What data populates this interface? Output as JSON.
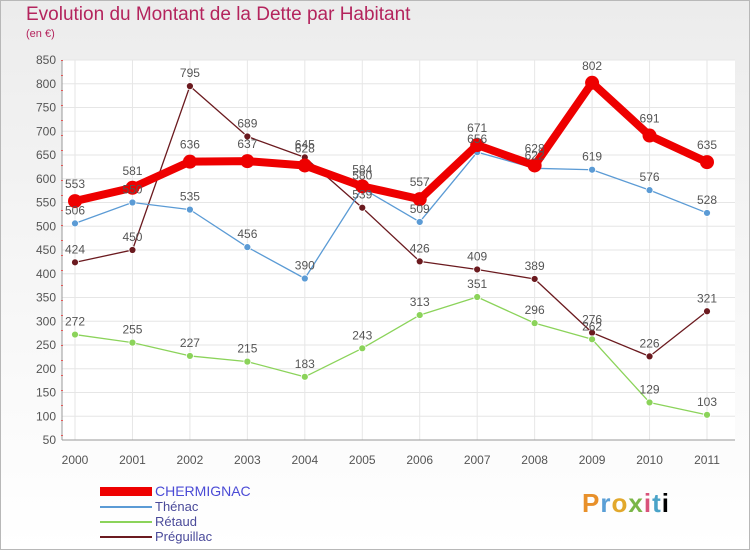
{
  "title": "Evolution du Montant de la Dette par Habitant",
  "unit": "(en €)",
  "brand": [
    "P",
    "r",
    "o",
    "x",
    "i",
    "t",
    "i"
  ],
  "chart_data": {
    "type": "line",
    "x": [
      "2000",
      "2001",
      "2002",
      "2003",
      "2004",
      "2005",
      "2006",
      "2007",
      "2008",
      "2009",
      "2010",
      "2011"
    ],
    "ylim": [
      50,
      850
    ],
    "yticks": [
      50,
      100,
      150,
      200,
      250,
      300,
      350,
      400,
      450,
      500,
      550,
      600,
      650,
      700,
      750,
      800,
      850
    ],
    "grid": true,
    "legend_position": "bottom-left",
    "series": [
      {
        "name": "Préguillac",
        "color": "#6b1a1f",
        "values": [
          424,
          450,
          795,
          689,
          645,
          539,
          426,
          409,
          389,
          276,
          226,
          321
        ]
      },
      {
        "name": "Rétaud",
        "color": "#8bd35a",
        "values": [
          272,
          255,
          227,
          215,
          183,
          243,
          313,
          351,
          296,
          262,
          129,
          103
        ]
      },
      {
        "name": "Thénac",
        "color": "#5b9bd5",
        "values": [
          506,
          550,
          535,
          456,
          390,
          580,
          509,
          656,
          622,
          619,
          576,
          528
        ]
      },
      {
        "name": "CHERMIGNAC",
        "color": "#ee0000",
        "values": [
          553,
          581,
          636,
          637,
          628,
          584,
          557,
          671,
          628,
          802,
          691,
          635
        ]
      }
    ]
  }
}
